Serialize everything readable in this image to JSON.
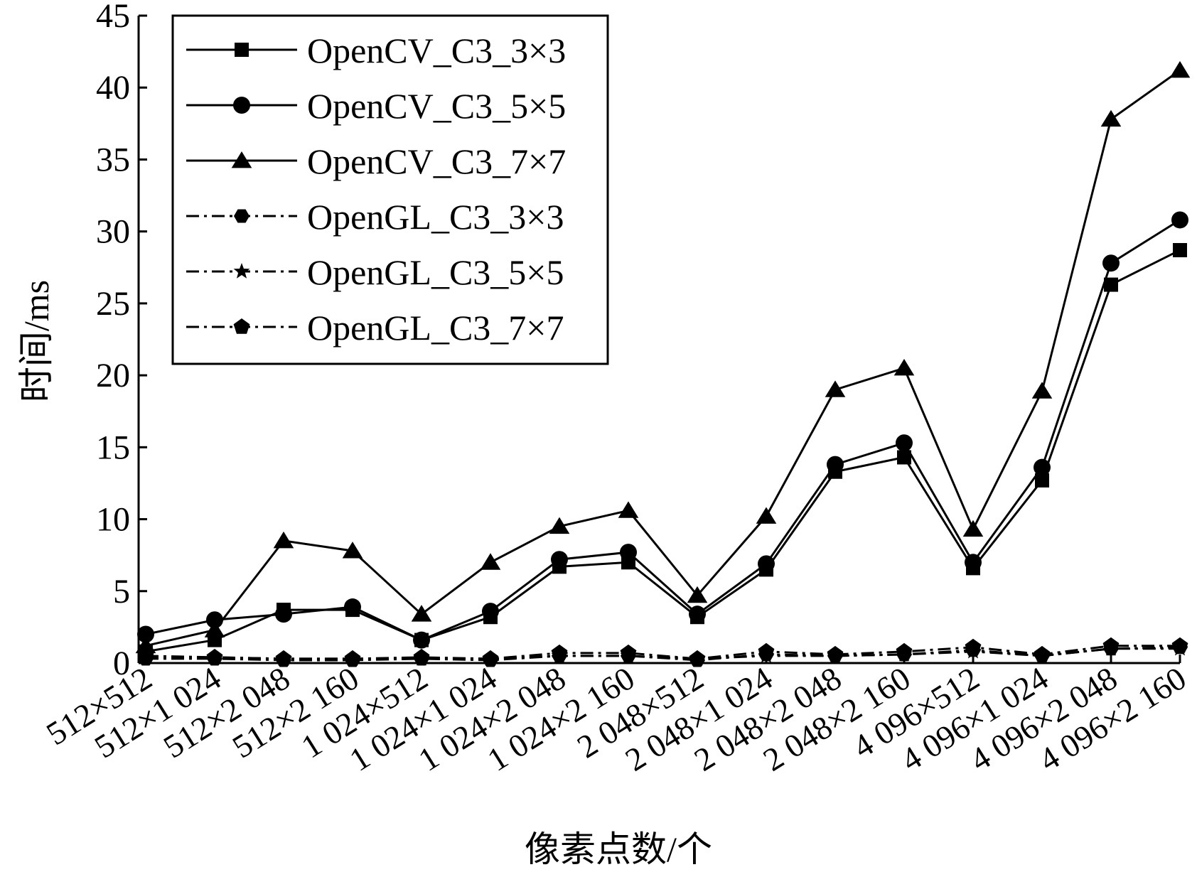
{
  "chart_data": {
    "type": "line",
    "xlabel": "像素点数/个",
    "ylabel": "时间/ms",
    "ylim": [
      0,
      45
    ],
    "yticks": [
      0,
      5,
      10,
      15,
      20,
      25,
      30,
      35,
      40,
      45
    ],
    "grid": false,
    "legend_position": "top-left",
    "categories": [
      "512×512",
      "512×1 024",
      "512×2 048",
      "512×2 160",
      "1 024×512",
      "1 024×1 024",
      "1 024×2 048",
      "1 024×2 160",
      "2 048×512",
      "2 048×1 024",
      "2 048×2 048",
      "2 048×2 160",
      "4 096×512",
      "4 096×1 024",
      "4 096×2 048",
      "4 096×2 160"
    ],
    "series": [
      {
        "name": "OpenCV_C3_3×3",
        "marker": "square",
        "dash": "solid",
        "values": [
          0.8,
          1.6,
          3.7,
          3.7,
          1.6,
          3.2,
          6.7,
          7.0,
          3.2,
          6.5,
          13.3,
          14.3,
          6.6,
          12.7,
          26.3,
          28.7
        ]
      },
      {
        "name": "OpenCV_C3_5×5",
        "marker": "circle",
        "dash": "solid",
        "values": [
          2.0,
          3.0,
          3.4,
          3.9,
          1.6,
          3.6,
          7.2,
          7.7,
          3.4,
          6.9,
          13.8,
          15.3,
          7.0,
          13.6,
          27.8,
          30.8
        ]
      },
      {
        "name": "OpenCV_C3_7×7",
        "marker": "triangle",
        "dash": "solid",
        "values": [
          1.2,
          2.3,
          8.5,
          7.8,
          3.4,
          7.0,
          9.5,
          10.6,
          4.7,
          10.2,
          19.0,
          20.5,
          9.3,
          18.9,
          37.8,
          41.2
        ]
      },
      {
        "name": "OpenGL_C3_3×3",
        "marker": "hexagon",
        "dash": "dashdot",
        "values": [
          0.3,
          0.3,
          0.2,
          0.2,
          0.3,
          0.2,
          0.5,
          0.5,
          0.2,
          0.6,
          0.5,
          0.6,
          0.9,
          0.5,
          1.0,
          1.1
        ]
      },
      {
        "name": "OpenGL_C3_5×5",
        "marker": "star",
        "dash": "dashdot",
        "values": [
          0.4,
          0.4,
          0.3,
          0.3,
          0.3,
          0.3,
          0.5,
          0.5,
          0.3,
          0.5,
          0.5,
          0.6,
          0.8,
          0.5,
          1.0,
          1.0
        ]
      },
      {
        "name": "OpenGL_C3_7×7",
        "marker": "pentagon",
        "dash": "dashdot",
        "values": [
          0.5,
          0.4,
          0.3,
          0.3,
          0.4,
          0.3,
          0.7,
          0.7,
          0.3,
          0.8,
          0.6,
          0.8,
          1.1,
          0.6,
          1.2,
          1.2
        ]
      }
    ]
  }
}
